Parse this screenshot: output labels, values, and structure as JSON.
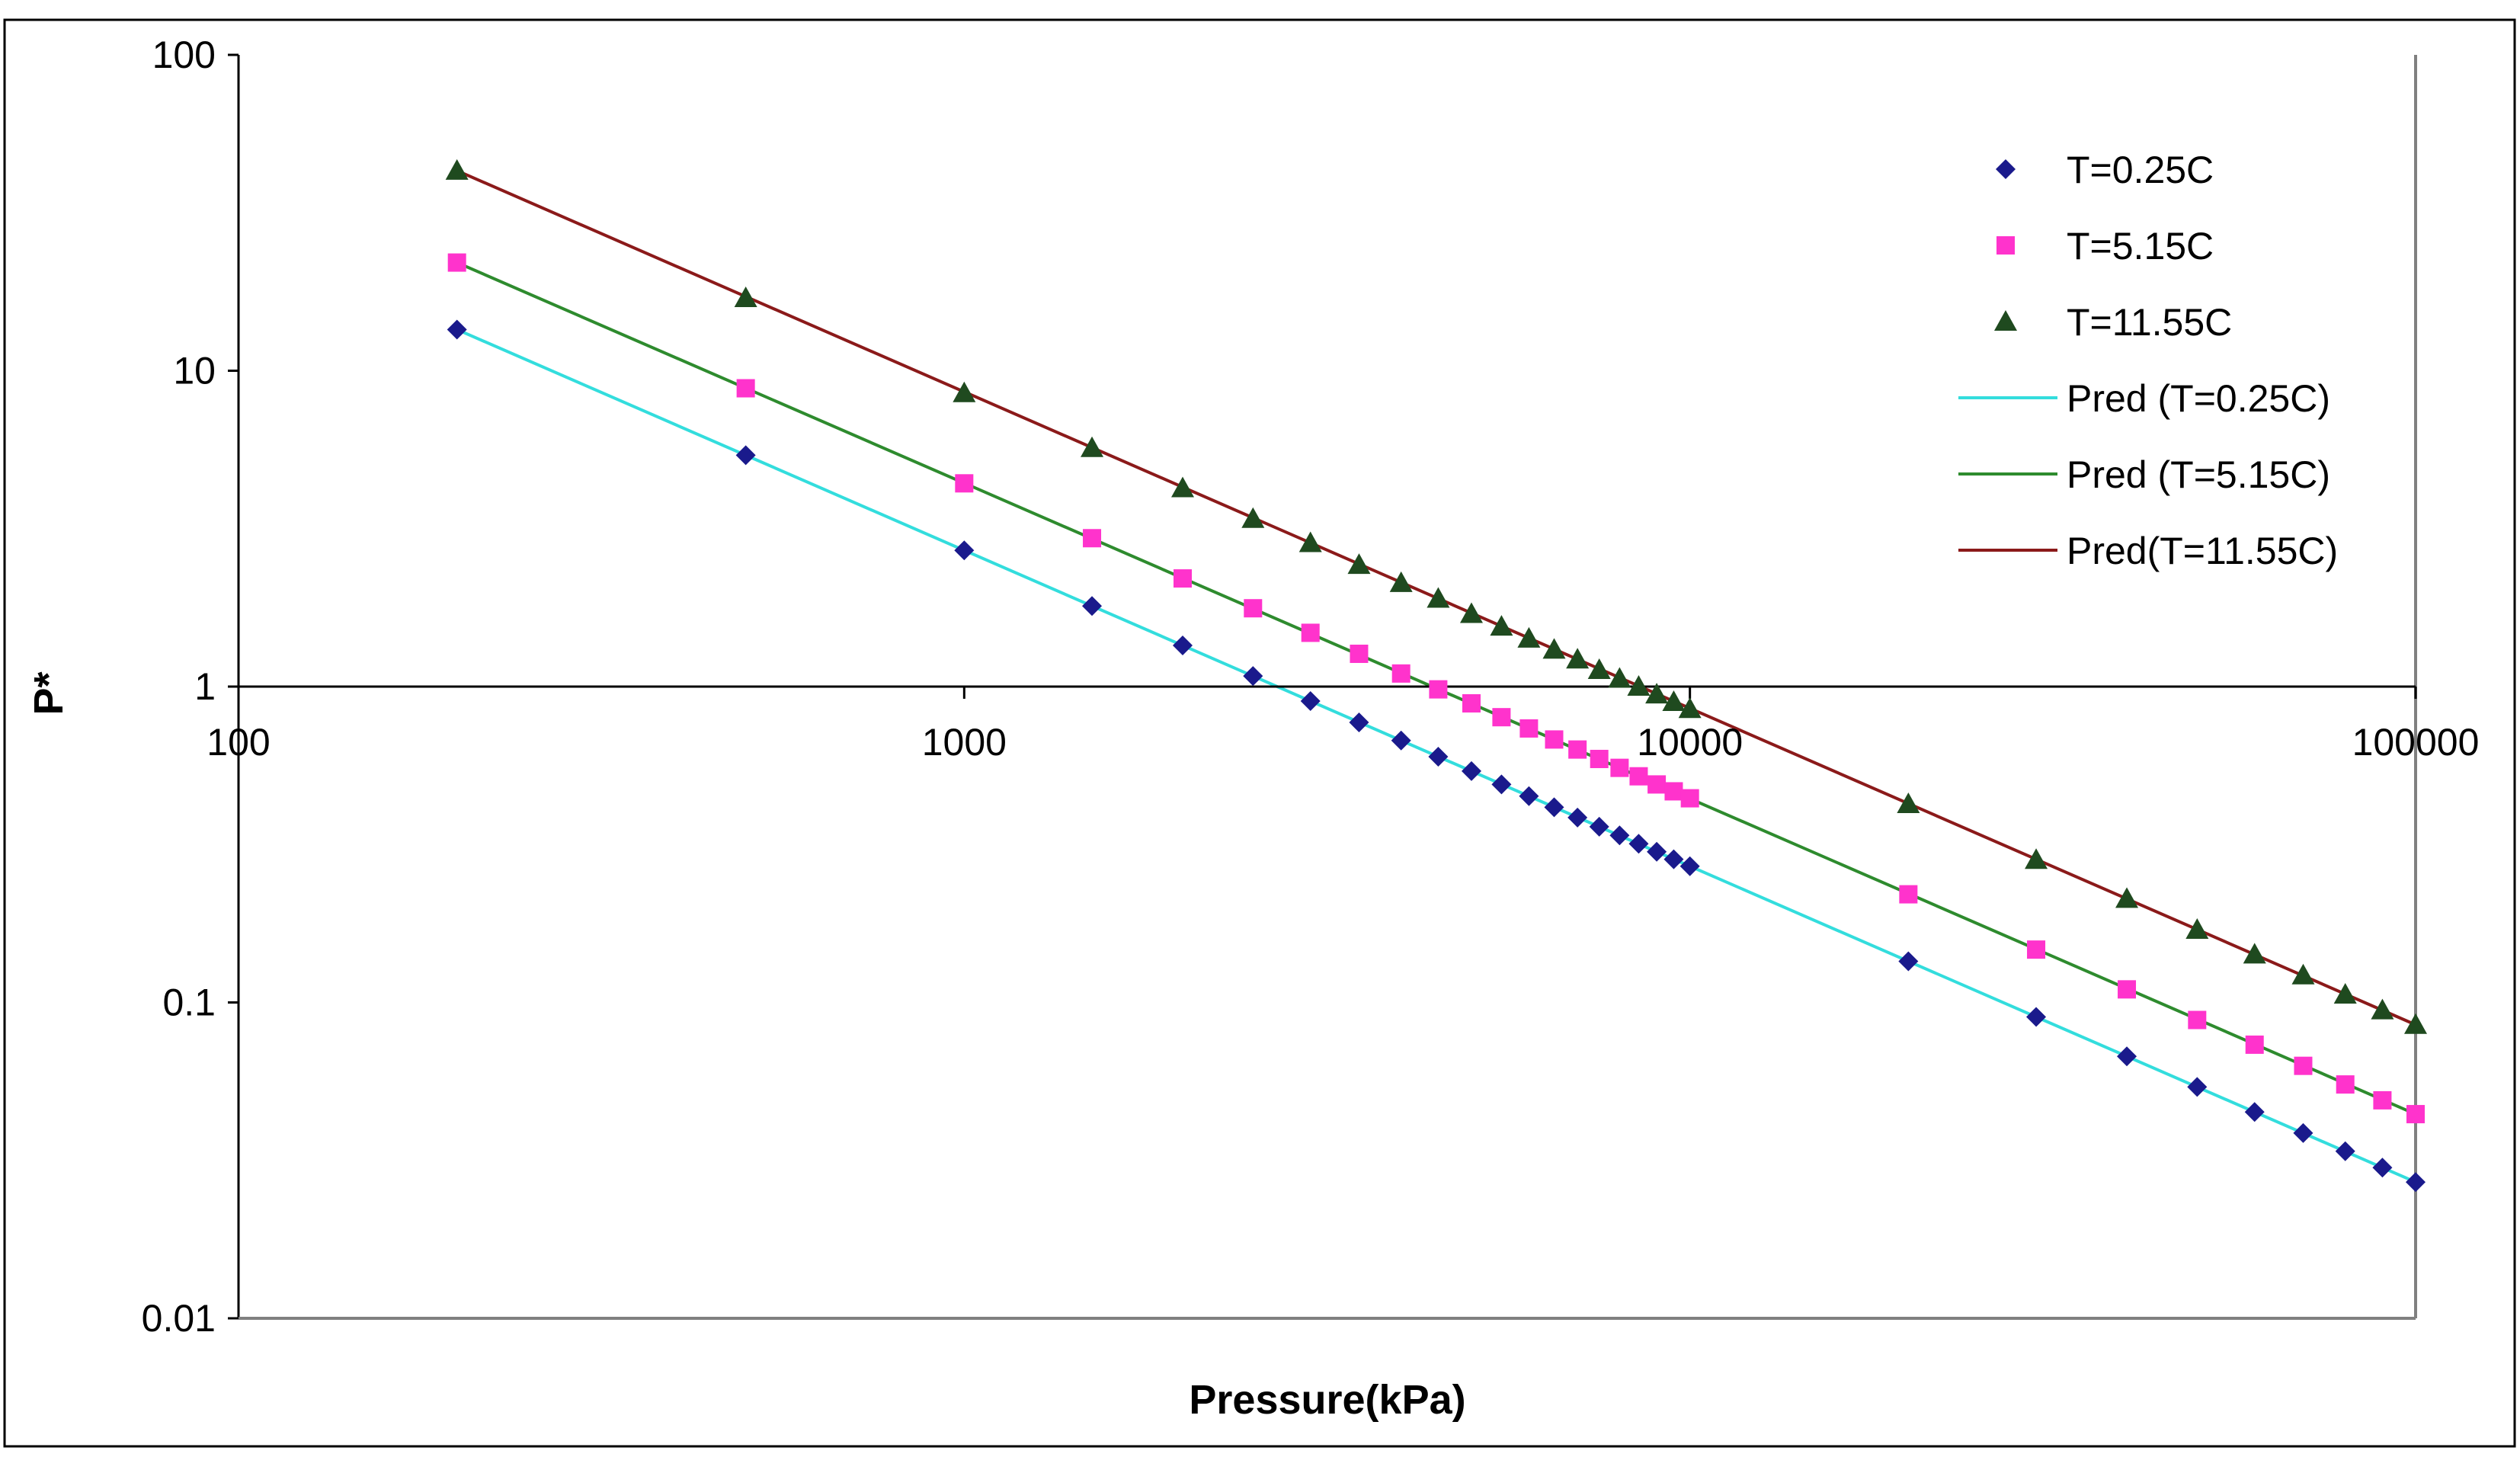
{
  "chart_data": {
    "type": "scatter",
    "title": "",
    "xlabel": "Pressure(kPa)",
    "ylabel": "P*",
    "x_scale": "log",
    "y_scale": "log",
    "xlim": [
      100,
      100000
    ],
    "ylim": [
      0.01,
      100
    ],
    "x_ticks": [
      {
        "value": 100,
        "label": "100"
      },
      {
        "value": 1000,
        "label": "1000"
      },
      {
        "value": 10000,
        "label": "10000"
      },
      {
        "value": 100000,
        "label": "100000"
      }
    ],
    "y_ticks": [
      {
        "value": 0.01,
        "label": "0.01"
      },
      {
        "value": 0.1,
        "label": "0.1"
      },
      {
        "value": 1,
        "label": "1"
      },
      {
        "value": 10,
        "label": "10"
      },
      {
        "value": 100,
        "label": "100"
      }
    ],
    "grid": false,
    "legend_position": "top-right",
    "series": [
      {
        "name": "T=0.25C",
        "kind": "scatter",
        "marker": "diamond",
        "color": "#1a1a8c",
        "x": [
          200,
          500,
          1000,
          1500,
          2000,
          2500,
          3000,
          3500,
          4000,
          4500,
          5000,
          5500,
          6000,
          6500,
          7000,
          7500,
          8000,
          8500,
          9000,
          9500,
          10000,
          20000,
          30000,
          40000,
          50000,
          60000,
          70000,
          80000,
          90000,
          100000
        ],
        "y": [
          13.5,
          5.4,
          2.7,
          1.8,
          1.35,
          1.08,
          0.9,
          0.77,
          0.675,
          0.6,
          0.54,
          0.49,
          0.45,
          0.415,
          0.385,
          0.36,
          0.338,
          0.318,
          0.3,
          0.284,
          0.27,
          0.135,
          0.09,
          0.0675,
          0.054,
          0.045,
          0.0386,
          0.0338,
          0.03,
          0.027
        ]
      },
      {
        "name": "T=5.15C",
        "kind": "scatter",
        "marker": "square",
        "color": "#ff33cc",
        "x": [
          200,
          500,
          1000,
          1500,
          2000,
          2500,
          3000,
          3500,
          4000,
          4500,
          5000,
          5500,
          6000,
          6500,
          7000,
          7500,
          8000,
          8500,
          9000,
          9500,
          10000,
          20000,
          30000,
          40000,
          50000,
          60000,
          70000,
          80000,
          90000,
          100000
        ],
        "y": [
          22,
          8.8,
          4.4,
          2.95,
          2.2,
          1.77,
          1.48,
          1.27,
          1.1,
          0.98,
          0.885,
          0.8,
          0.737,
          0.68,
          0.632,
          0.59,
          0.553,
          0.52,
          0.49,
          0.466,
          0.443,
          0.22,
          0.147,
          0.11,
          0.088,
          0.0735,
          0.063,
          0.055,
          0.049,
          0.0443
        ]
      },
      {
        "name": "T=11.55C",
        "kind": "scatter",
        "marker": "triangle",
        "color": "#1f4a1f",
        "x": [
          200,
          500,
          1000,
          1500,
          2000,
          2500,
          3000,
          3500,
          4000,
          4500,
          5000,
          5500,
          6000,
          6500,
          7000,
          7500,
          8000,
          8500,
          9000,
          9500,
          10000,
          20000,
          30000,
          40000,
          50000,
          60000,
          70000,
          80000,
          90000,
          100000
        ],
        "y": [
          43,
          17,
          8.5,
          5.7,
          4.25,
          3.4,
          2.85,
          2.43,
          2.13,
          1.9,
          1.7,
          1.55,
          1.42,
          1.31,
          1.22,
          1.13,
          1.06,
          1.0,
          0.945,
          0.895,
          0.85,
          0.425,
          0.283,
          0.213,
          0.17,
          0.142,
          0.122,
          0.106,
          0.0945,
          0.085
        ]
      },
      {
        "name": "Pred (T=0.25C)",
        "kind": "line",
        "color": "#33dddd",
        "x": [
          200,
          100000
        ],
        "y": [
          13.5,
          0.027
        ]
      },
      {
        "name": "Pred (T=5.15C)",
        "kind": "line",
        "color": "#2e8b2e",
        "x": [
          200,
          100000
        ],
        "y": [
          22,
          0.0443
        ]
      },
      {
        "name": "Pred(T=11.55C)",
        "kind": "line",
        "color": "#8b1a1a",
        "x": [
          200,
          100000
        ],
        "y": [
          43,
          0.085
        ]
      }
    ]
  }
}
